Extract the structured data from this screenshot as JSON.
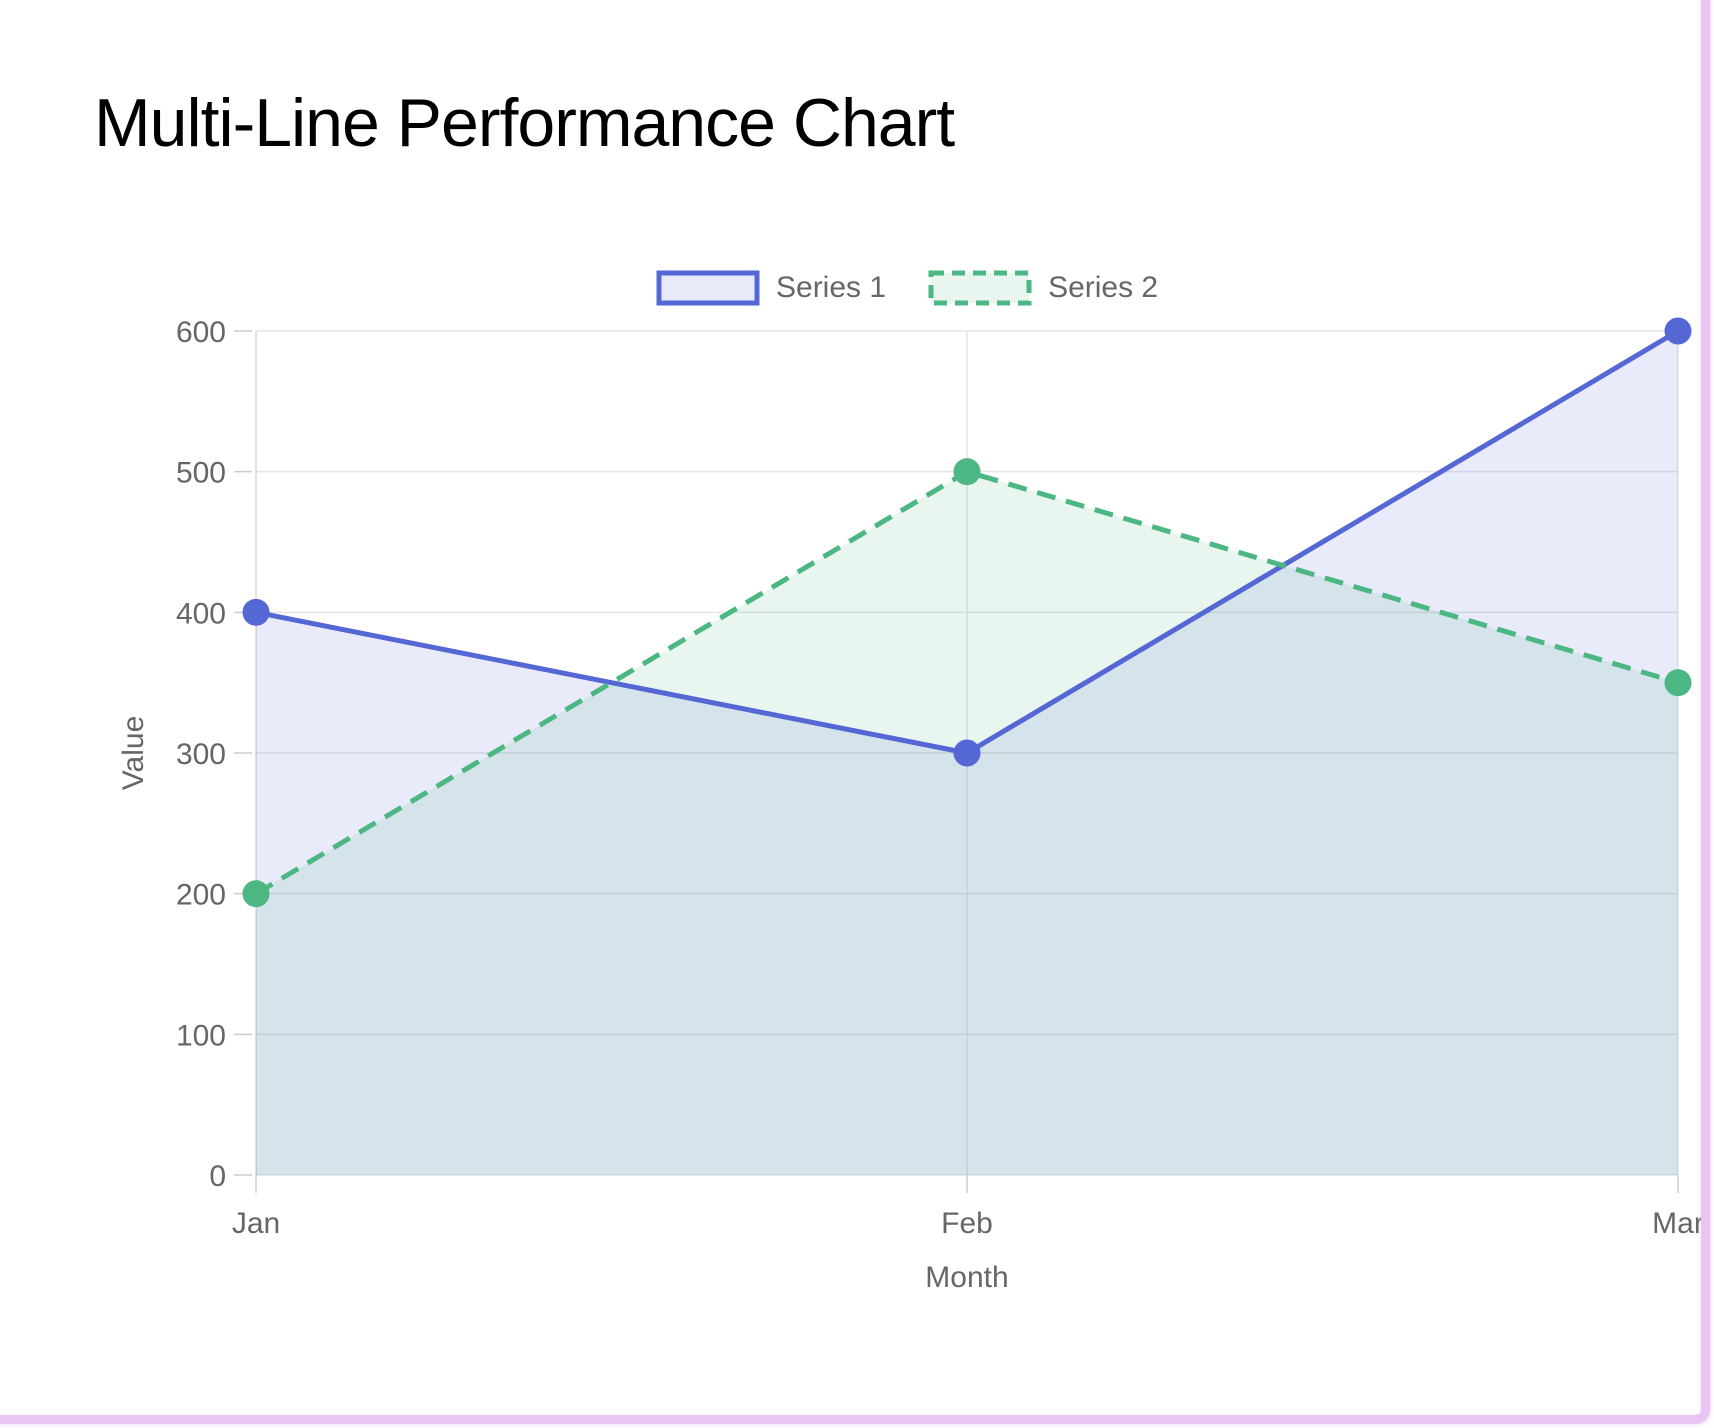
{
  "page": {
    "border_color": "#eac5f4",
    "background": "#ffffff"
  },
  "chart_data": {
    "type": "line",
    "title": "Multi-Line Performance Chart",
    "categories": [
      "Jan",
      "Feb",
      "Mar"
    ],
    "series": [
      {
        "name": "Series 1",
        "values": [
          400,
          300,
          600
        ],
        "color": "#5467d5",
        "fill": "rgba(84,103,213,0.13)",
        "style": "solid"
      },
      {
        "name": "Series 2",
        "values": [
          200,
          500,
          350
        ],
        "color": "#4cb782",
        "fill": "rgba(76,183,130,0.13)",
        "style": "dashed"
      }
    ],
    "xlabel": "Month",
    "ylabel": "Value",
    "ylim": [
      0,
      600
    ],
    "yticks": [
      0,
      100,
      200,
      300,
      400,
      500,
      600
    ],
    "legend_position": "top",
    "grid": true,
    "marker_radius": 13.5,
    "line_width": 5,
    "text_color": "#666666",
    "grid_color": "#e5e5e5",
    "axis_line_color": "#d8d8d8",
    "tick_color": "#cccccc"
  }
}
